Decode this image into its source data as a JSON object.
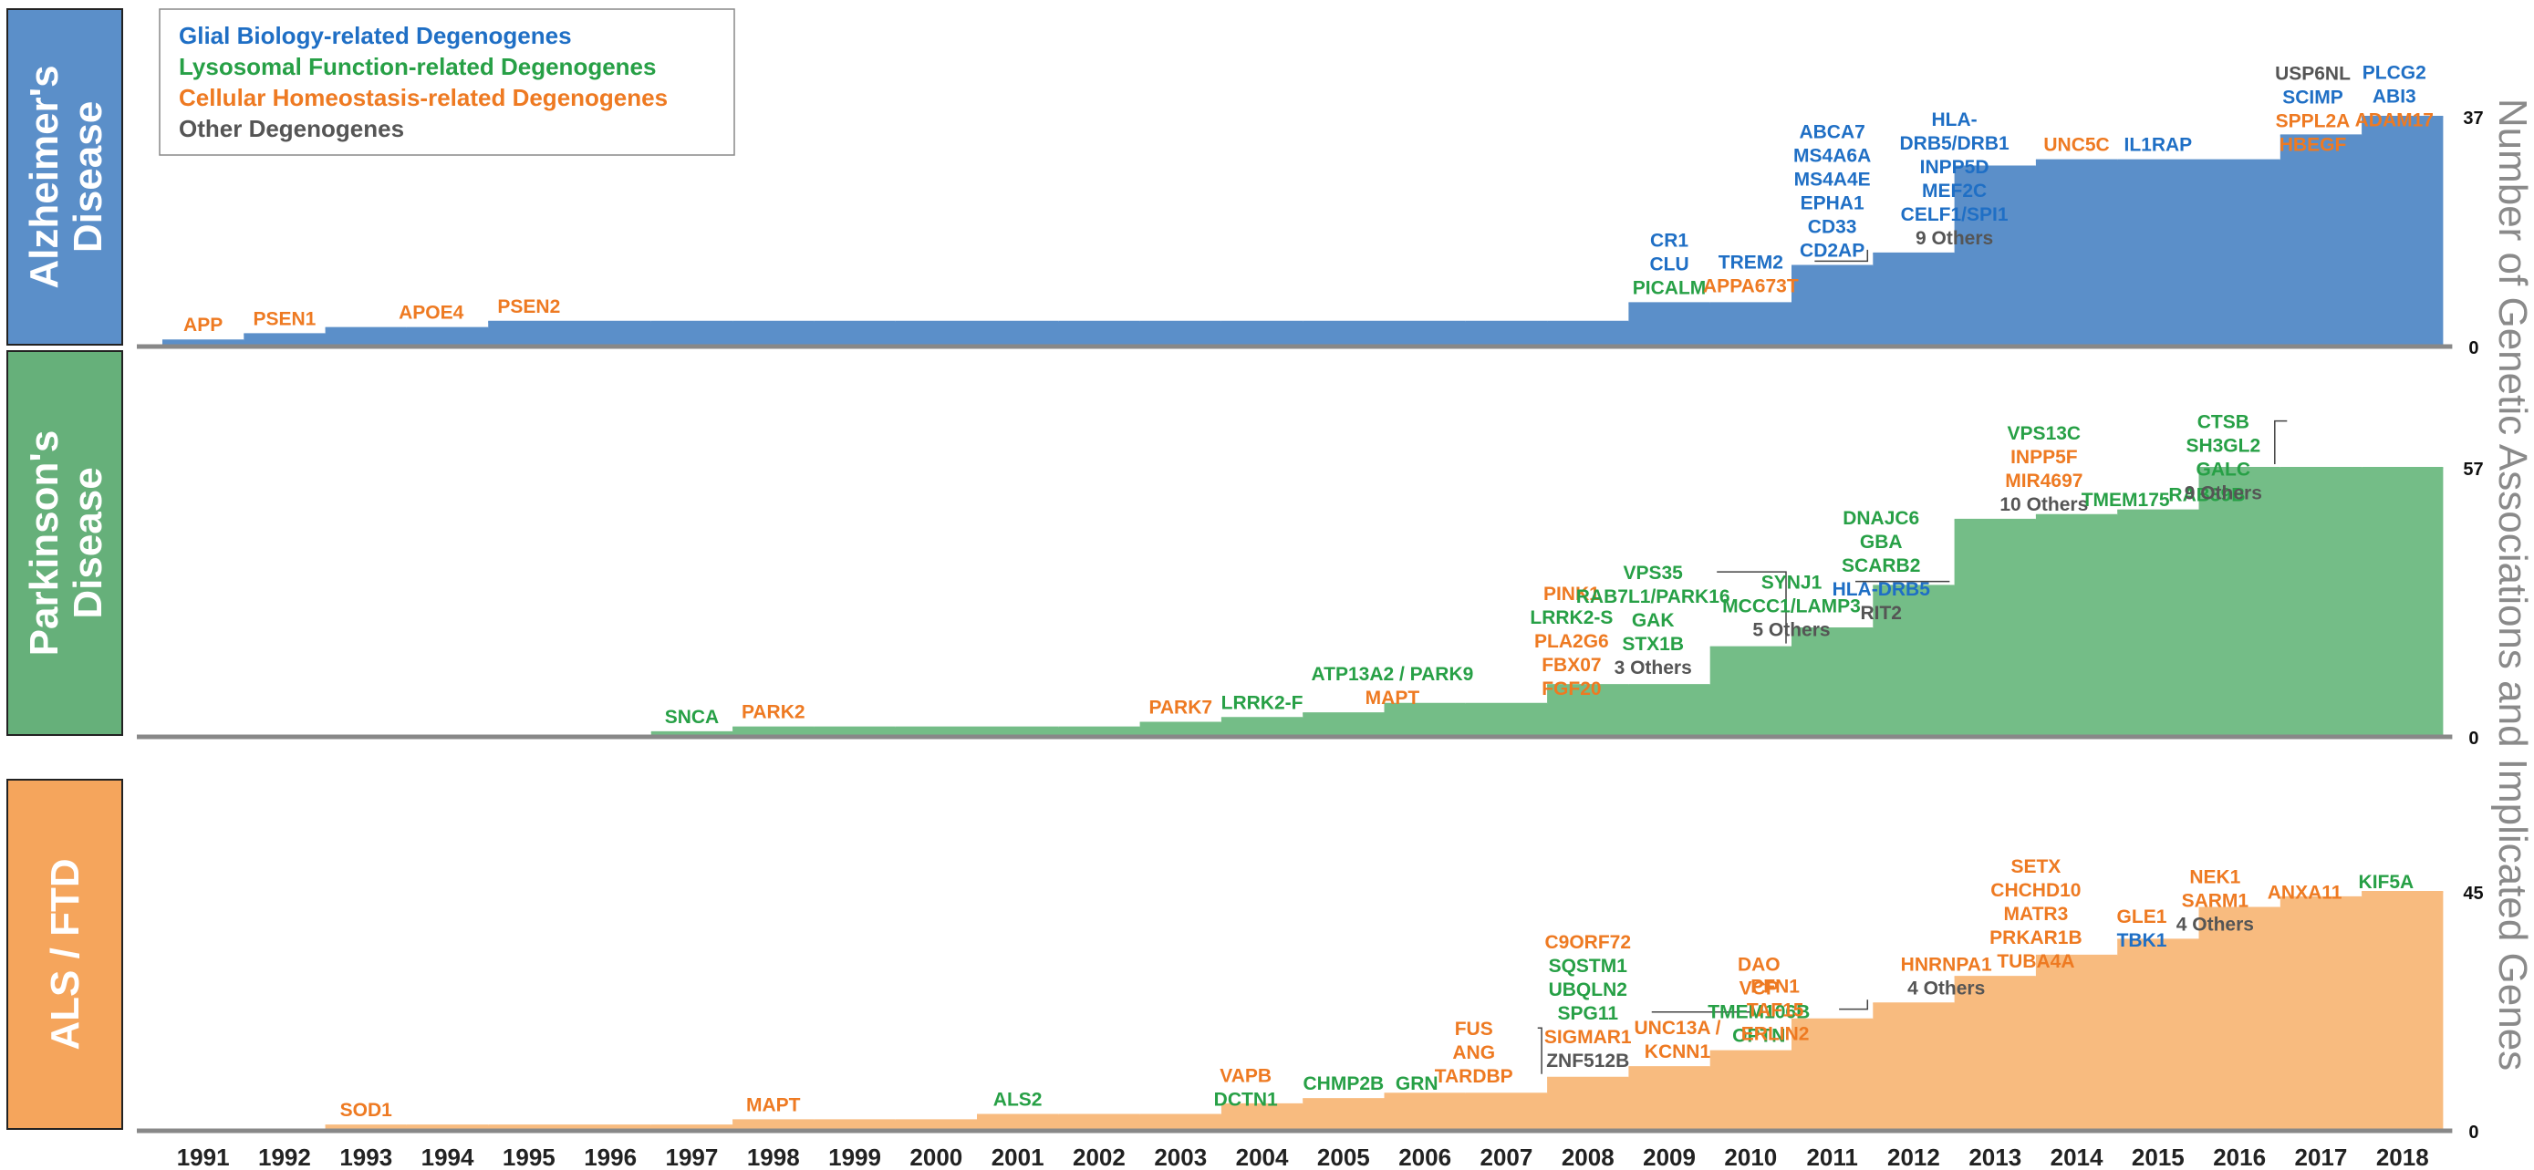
{
  "colors": {
    "glial": "#1f6fc5",
    "lysosomal": "#27a046",
    "homeostasis": "#ee7a22",
    "other": "#555555",
    "ad_fill": "#5b8fc9",
    "pd_fill": "#74bd87",
    "als_fill": "#f8bb7f",
    "ad_panel": "#5b8fc9",
    "pd_panel": "#66b07a",
    "als_panel": "#f5a55c",
    "axis": "#888888",
    "ylabel": "#8a8a8a"
  },
  "legend": [
    {
      "label": "Glial Biology-related Degenogenes",
      "category": "glial"
    },
    {
      "label": "Lysosomal Function-related Degenogenes",
      "category": "lysosomal"
    },
    {
      "label": "Cellular Homeostasis-related Degenogenes",
      "category": "homeostasis"
    },
    {
      "label": "Other Degenogenes",
      "category": "other"
    }
  ],
  "y_axis_title": "Number of Genetic Associations and Implicated Genes",
  "chart_data": {
    "type": "area",
    "subtype": "step",
    "x": [
      1991,
      1992,
      1993,
      1994,
      1995,
      1996,
      1997,
      1998,
      1999,
      2000,
      2001,
      2002,
      2003,
      2004,
      2005,
      2006,
      2007,
      2008,
      2009,
      2010,
      2011,
      2012,
      2013,
      2014,
      2015,
      2016,
      2017,
      2018
    ],
    "series": [
      {
        "panel_label": "Alzheimer's Disease",
        "fill": "ad_fill",
        "panel_color": "ad_panel",
        "ylim": [
          0,
          37
        ],
        "max_label": "37",
        "zero_label": "0",
        "values": [
          1,
          2,
          3,
          3,
          4,
          4,
          4,
          4,
          4,
          4,
          4,
          4,
          4,
          4,
          4,
          4,
          4,
          4,
          7,
          7,
          13,
          15,
          29,
          30,
          30,
          30,
          34,
          37
        ],
        "annotations": [
          {
            "year": 1991,
            "lines": [
              {
                "text": "APP",
                "c": "homeostasis"
              }
            ]
          },
          {
            "year": 1992,
            "lines": [
              {
                "text": "PSEN1",
                "c": "homeostasis"
              }
            ]
          },
          {
            "year": 1993.8,
            "lines": [
              {
                "text": "APOE4",
                "c": "homeostasis"
              }
            ]
          },
          {
            "year": 1995,
            "lines": [
              {
                "text": "PSEN2",
                "c": "homeostasis"
              }
            ]
          },
          {
            "year": 2009,
            "lines": [
              {
                "text": "CR1",
                "c": "glial"
              },
              {
                "text": "CLU",
                "c": "glial"
              },
              {
                "text": "PICALM",
                "c": "lysosomal"
              }
            ]
          },
          {
            "year": 2011,
            "lines": [
              {
                "text": "ABCA7",
                "c": "glial"
              },
              {
                "text": "MS4A6A",
                "c": "glial"
              },
              {
                "text": "MS4A4E",
                "c": "glial"
              },
              {
                "text": "EPHA1",
                "c": "glial"
              },
              {
                "text": "CD33",
                "c": "glial"
              },
              {
                "text": "CD2AP",
                "c": "glial"
              }
            ]
          },
          {
            "year": 2010,
            "lines": [
              {
                "text": "TREM2",
                "c": "glial"
              },
              {
                "text": "APPA673T",
                "c": "homeostasis"
              }
            ],
            "leader_to": 2012,
            "leader_value": 15
          },
          {
            "year": 2012.5,
            "lines": [
              {
                "text": "HLA-",
                "c": "glial"
              },
              {
                "text": "DRB5/DRB1",
                "c": "glial"
              },
              {
                "text": "INPP5D",
                "c": "glial"
              },
              {
                "text": "MEF2C",
                "c": "glial"
              },
              {
                "text": "CELF1/SPI1",
                "c": "glial"
              },
              {
                "text": "9 Others",
                "c": "other"
              }
            ]
          },
          {
            "year": 2014,
            "lines": [
              {
                "text": "UNC5C",
                "c": "homeostasis"
              }
            ]
          },
          {
            "year": 2015,
            "lines": [
              {
                "text": "IL1RAP",
                "c": "glial"
              }
            ]
          },
          {
            "year": 2016.9,
            "lines": [
              {
                "text": "USP6NL",
                "c": "other"
              },
              {
                "text": "SCIMP",
                "c": "glial"
              },
              {
                "text": "SPPL2A",
                "c": "homeostasis"
              },
              {
                "text": "HBEGF",
                "c": "homeostasis"
              }
            ]
          },
          {
            "year": 2017.9,
            "lines": [
              {
                "text": "PLCG2",
                "c": "glial"
              },
              {
                "text": "ABI3",
                "c": "glial"
              },
              {
                "text": "ADAM17",
                "c": "homeostasis"
              }
            ]
          }
        ]
      },
      {
        "panel_label": "Parkinson's Disease",
        "fill": "pd_fill",
        "panel_color": "pd_panel",
        "ylim": [
          0,
          57
        ],
        "max_label": "57",
        "zero_label": "0",
        "values": [
          0,
          0,
          0,
          0,
          0,
          0,
          1,
          2,
          2,
          2,
          2,
          2,
          3,
          4,
          5,
          7,
          7,
          11,
          11,
          19,
          23,
          32,
          46,
          47,
          48,
          57,
          57,
          57
        ],
        "annotations": [
          {
            "year": 1997,
            "lines": [
              {
                "text": "SNCA",
                "c": "lysosomal"
              }
            ]
          },
          {
            "year": 1998,
            "lines": [
              {
                "text": "PARK2",
                "c": "homeostasis"
              }
            ]
          },
          {
            "year": 2003,
            "lines": [
              {
                "text": "PARK7",
                "c": "homeostasis"
              }
            ]
          },
          {
            "year": 2004,
            "lines": [
              {
                "text": "LRRK2-F",
                "c": "lysosomal"
              }
            ]
          },
          {
            "year": 2005.6,
            "lines": [
              {
                "text": "ATP13A2 / PARK9",
                "c": "lysosomal"
              },
              {
                "text": "MAPT",
                "c": "homeostasis"
              }
            ]
          },
          {
            "year": 2007.8,
            "lines": [
              {
                "text": "PINK1",
                "c": "homeostasis"
              },
              {
                "text": "LRRK2-S",
                "c": "lysosomal"
              },
              {
                "text": "PLA2G6",
                "c": "homeostasis"
              },
              {
                "text": "FBX07",
                "c": "homeostasis"
              },
              {
                "text": "FGF20",
                "c": "homeostasis"
              }
            ]
          },
          {
            "year": 2008.8,
            "lines": [
              {
                "text": "VPS35",
                "c": "lysosomal"
              },
              {
                "text": "RAB7L1/PARK16",
                "c": "lysosomal"
              },
              {
                "text": "GAK",
                "c": "lysosomal"
              },
              {
                "text": "STX1B",
                "c": "lysosomal"
              },
              {
                "text": "3 Others",
                "c": "other"
              }
            ],
            "leader_to": 2011,
            "leader_value": 19
          },
          {
            "year": 2010.5,
            "lines": [
              {
                "text": "SYNJ1",
                "c": "lysosomal"
              },
              {
                "text": "MCCC1/LAMP3",
                "c": "lysosomal"
              },
              {
                "text": "5 Others",
                "c": "other"
              }
            ],
            "leader_to": 2013,
            "leader_value": 32
          },
          {
            "year": 2011.6,
            "lines": [
              {
                "text": "DNAJC6",
                "c": "lysosomal"
              },
              {
                "text": "GBA",
                "c": "lysosomal"
              },
              {
                "text": "SCARB2",
                "c": "lysosomal"
              },
              {
                "text": "HLA-DRB5",
                "c": "glial"
              },
              {
                "text": "RIT2",
                "c": "other"
              }
            ]
          },
          {
            "year": 2013.6,
            "lines": [
              {
                "text": "VPS13C",
                "c": "lysosomal"
              },
              {
                "text": "INPP5F",
                "c": "homeostasis"
              },
              {
                "text": "MIR4697",
                "c": "homeostasis"
              },
              {
                "text": "10 Others",
                "c": "other"
              }
            ]
          },
          {
            "year": 2014.6,
            "lines": [
              {
                "text": "TMEM175",
                "c": "lysosomal"
              }
            ]
          },
          {
            "year": 2015.6,
            "lines": [
              {
                "text": "RAB39B",
                "c": "lysosomal"
              }
            ]
          },
          {
            "year": 2015.8,
            "lines": [
              {
                "text": "CTSB",
                "c": "lysosomal"
              },
              {
                "text": "SH3GL2",
                "c": "lysosomal"
              },
              {
                "text": "GALC",
                "c": "lysosomal"
              },
              {
                "text": "9 Others",
                "c": "other"
              }
            ],
            "leader_to": 2017,
            "leader_value": 57
          }
        ]
      },
      {
        "panel_label": "ALS / FTD",
        "fill": "als_fill",
        "panel_color": "als_panel",
        "ylim": [
          0,
          45
        ],
        "max_label": "45",
        "zero_label": "0",
        "values": [
          0,
          0,
          1,
          1,
          1,
          1,
          1,
          2,
          2,
          2,
          3,
          3,
          3,
          5,
          6,
          7,
          7,
          10,
          12,
          15,
          21,
          24,
          29,
          33,
          36,
          42,
          44,
          45
        ],
        "annotations": [
          {
            "year": 1993,
            "lines": [
              {
                "text": "SOD1",
                "c": "homeostasis"
              }
            ]
          },
          {
            "year": 1998,
            "lines": [
              {
                "text": "MAPT",
                "c": "homeostasis"
              }
            ]
          },
          {
            "year": 2001,
            "lines": [
              {
                "text": "ALS2",
                "c": "lysosomal"
              }
            ]
          },
          {
            "year": 2003.8,
            "lines": [
              {
                "text": "VAPB",
                "c": "homeostasis"
              },
              {
                "text": "DCTN1",
                "c": "lysosomal"
              }
            ]
          },
          {
            "year": 2005,
            "lines": [
              {
                "text": "CHMP2B",
                "c": "lysosomal"
              }
            ]
          },
          {
            "year": 2005.9,
            "lines": [
              {
                "text": "GRN",
                "c": "lysosomal"
              }
            ]
          },
          {
            "year": 2006.6,
            "lines": [
              {
                "text": "FUS",
                "c": "homeostasis"
              },
              {
                "text": "ANG",
                "c": "homeostasis"
              },
              {
                "text": "TARDBP",
                "c": "homeostasis"
              }
            ],
            "leader_to": 2008,
            "leader_value": 10
          },
          {
            "year": 2008,
            "lines": [
              {
                "text": "C9ORF72",
                "c": "homeostasis"
              },
              {
                "text": "SQSTM1",
                "c": "lysosomal"
              },
              {
                "text": "UBQLN2",
                "c": "lysosomal"
              },
              {
                "text": "SPG11",
                "c": "lysosomal"
              },
              {
                "text": "SIGMAR1",
                "c": "homeostasis"
              },
              {
                "text": "ZNF512B",
                "c": "other"
              }
            ],
            "leader_to": 2010.6,
            "leader_value": 21,
            "leader_line": 3
          },
          {
            "year": 2009.1,
            "lines": [
              {
                "text": "UNC13A /",
                "c": "homeostasis"
              },
              {
                "text": "KCNN1",
                "c": "homeostasis"
              }
            ]
          },
          {
            "year": 2010.1,
            "lines": [
              {
                "text": "DAO",
                "c": "homeostasis"
              },
              {
                "text": "VCP",
                "c": "homeostasis"
              },
              {
                "text": "TMEM106B",
                "c": "lysosomal"
              },
              {
                "text": "OPTN",
                "c": "lysosomal"
              }
            ]
          },
          {
            "year": 2010.3,
            "lines": [
              {
                "text": "PFN1",
                "c": "homeostasis"
              },
              {
                "text": "TAF15",
                "c": "homeostasis"
              },
              {
                "text": "ERLIN2",
                "c": "homeostasis"
              }
            ],
            "leader_to": 2012,
            "leader_value": 24,
            "leader_line": 1
          },
          {
            "year": 2012.4,
            "lines": [
              {
                "text": "HNRNPA1",
                "c": "homeostasis"
              },
              {
                "text": "4 Others",
                "c": "other"
              }
            ]
          },
          {
            "year": 2013.5,
            "lines": [
              {
                "text": "SETX",
                "c": "homeostasis"
              },
              {
                "text": "CHCHD10",
                "c": "homeostasis"
              },
              {
                "text": "MATR3",
                "c": "homeostasis"
              },
              {
                "text": "PRKAR1B",
                "c": "homeostasis"
              },
              {
                "text": "TUBA4A",
                "c": "homeostasis"
              }
            ]
          },
          {
            "year": 2014.8,
            "lines": [
              {
                "text": "GLE1",
                "c": "homeostasis"
              },
              {
                "text": "TBK1",
                "c": "glial"
              }
            ]
          },
          {
            "year": 2015.7,
            "lines": [
              {
                "text": "NEK1",
                "c": "homeostasis"
              },
              {
                "text": "SARM1",
                "c": "homeostasis"
              },
              {
                "text": "4 Others",
                "c": "other"
              }
            ]
          },
          {
            "year": 2016.8,
            "lines": [
              {
                "text": "ANXA11",
                "c": "homeostasis"
              }
            ]
          },
          {
            "year": 2017.8,
            "lines": [
              {
                "text": "KIF5A",
                "c": "lysosomal"
              }
            ]
          }
        ]
      }
    ],
    "xlabel": "",
    "grid": false,
    "legend_position": "top-left"
  }
}
